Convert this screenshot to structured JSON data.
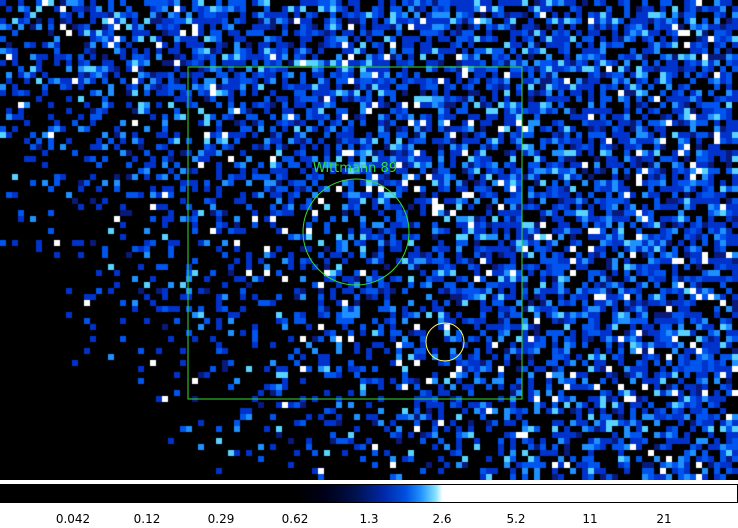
{
  "image": {
    "background_color": "#000000",
    "colormap": [
      "#000000",
      "#0a1a7a",
      "#0033cc",
      "#0055ee",
      "#1e90ff",
      "#5ad2ff",
      "#ffffff"
    ]
  },
  "regions": {
    "box_color": "#33dd33",
    "label_color": "#33dd33",
    "source_circle_color": "#ffff66",
    "source_label": "Wittmann 89"
  },
  "colorbar": {
    "tick_labels": [
      "0.042",
      "0.12",
      "0.29",
      "0.62",
      "1.3",
      "2.6",
      "5.2",
      "11",
      "21"
    ]
  }
}
